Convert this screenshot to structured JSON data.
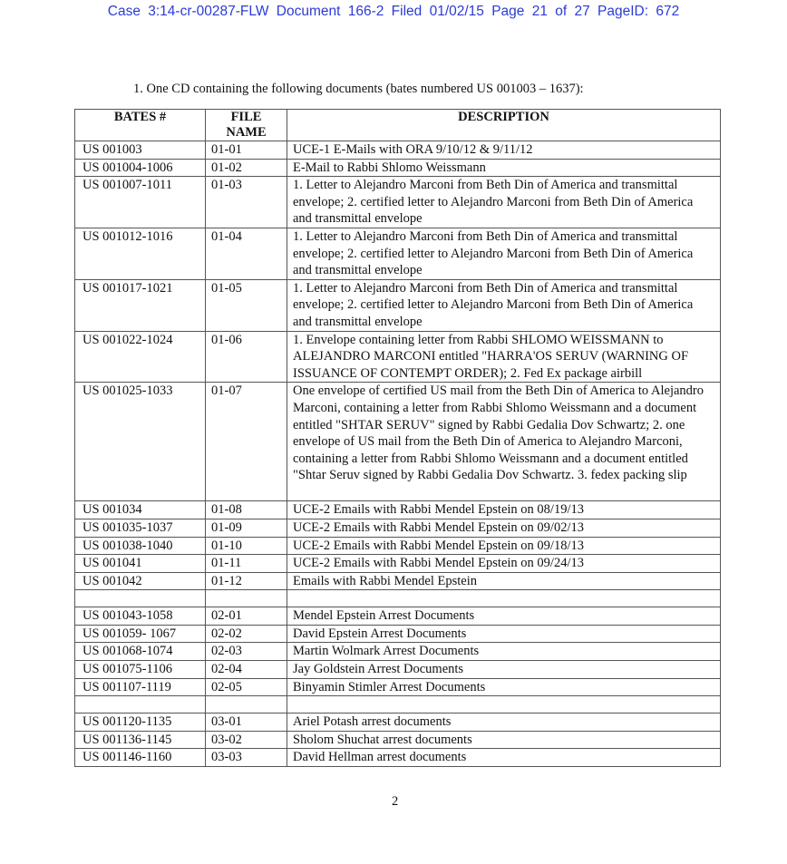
{
  "header": "Case 3:14-cr-00287-FLW   Document 166-2   Filed 01/02/15   Page 21 of 27 PageID: 672",
  "intro": "1.  One CD containing the following documents (bates numbered US 001003 – 1637):",
  "columns": [
    "BATES #",
    "FILE NAME",
    "DESCRIPTION"
  ],
  "rows": [
    [
      "US 001003",
      "01-01",
      "UCE-1 E-Mails with ORA 9/10/12 & 9/11/12"
    ],
    [
      "US 001004-1006",
      "01-02",
      "E-Mail to Rabbi Shlomo Weissmann"
    ],
    [
      "US 001007-1011",
      "01-03",
      "1. Letter to Alejandro Marconi from Beth Din of America and transmittal envelope;  2.  certified letter to Alejandro Marconi from Beth Din of America and transmittal envelope"
    ],
    [
      "US 001012-1016",
      "01-04",
      "1.  Letter to Alejandro Marconi from Beth Din of America and transmittal envelope; 2. certified letter to Alejandro Marconi from Beth Din of America and transmittal envelope"
    ],
    [
      "US 001017-1021",
      "01-05",
      "1. Letter to Alejandro Marconi from Beth Din of America and transmittal envelope; 2. certified letter to Alejandro Marconi from Beth Din of America and transmittal envelope"
    ],
    [
      "US 001022-1024",
      "01-06",
      "1.  Envelope containing letter from Rabbi SHLOMO WEISSMANN to ALEJANDRO MARCONI entitled \"HARRA'OS SERUV (WARNING OF ISSUANCE OF CONTEMPT ORDER); 2. Fed Ex package airbill"
    ],
    [
      "US 001025-1033",
      "01-07",
      "One envelope of certified US mail from the Beth Din of America to Alejandro Marconi, containing a letter from Rabbi Shlomo Weissmann and a document entitled \"SHTAR SERUV\" signed by Rabbi Gedalia Dov Schwartz; 2. one envelope of US mail from the Beth Din of America to Alejandro Marconi, containing a letter from Rabbi Shlomo Weissmann and a document entitled \"Shtar Seruv signed by Rabbi Gedalia Dov Schwartz. 3. fedex packing slip"
    ],
    [
      "US 001034",
      "01-08",
      "UCE-2 Emails with Rabbi Mendel Epstein on 08/19/13"
    ],
    [
      "US 001035-1037",
      "01-09",
      "UCE-2 Emails with Rabbi Mendel Epstein on 09/02/13"
    ],
    [
      "US 001038-1040",
      "01-10",
      "UCE-2 Emails with Rabbi Mendel Epstein on 09/18/13"
    ],
    [
      "US 001041",
      "01-11",
      "UCE-2 Emails with Rabbi Mendel Epstein on 09/24/13"
    ],
    [
      "US 001042",
      "01-12",
      "Emails with Rabbi Mendel Epstein"
    ],
    [
      "",
      "",
      ""
    ],
    [
      "US 001043-1058",
      "02-01",
      "Mendel Epstein Arrest Documents"
    ],
    [
      "US 001059- 1067",
      "02-02",
      "David Epstein Arrest Documents"
    ],
    [
      "US 001068-1074",
      "02-03",
      "Martin Wolmark Arrest Documents"
    ],
    [
      "US 001075-1106",
      "02-04",
      "Jay Goldstein Arrest Documents"
    ],
    [
      "US 001107-1119",
      "02-05",
      "Binyamin Stimler Arrest Documents"
    ],
    [
      "",
      "",
      ""
    ],
    [
      "US 001120-1135",
      "03-01",
      "Ariel Potash arrest documents"
    ],
    [
      "US 001136-1145",
      "03-02",
      "Sholom Shuchat arrest documents"
    ],
    [
      "US 001146-1160",
      "03-03",
      "David Hellman arrest documents"
    ]
  ],
  "page_number": "2"
}
